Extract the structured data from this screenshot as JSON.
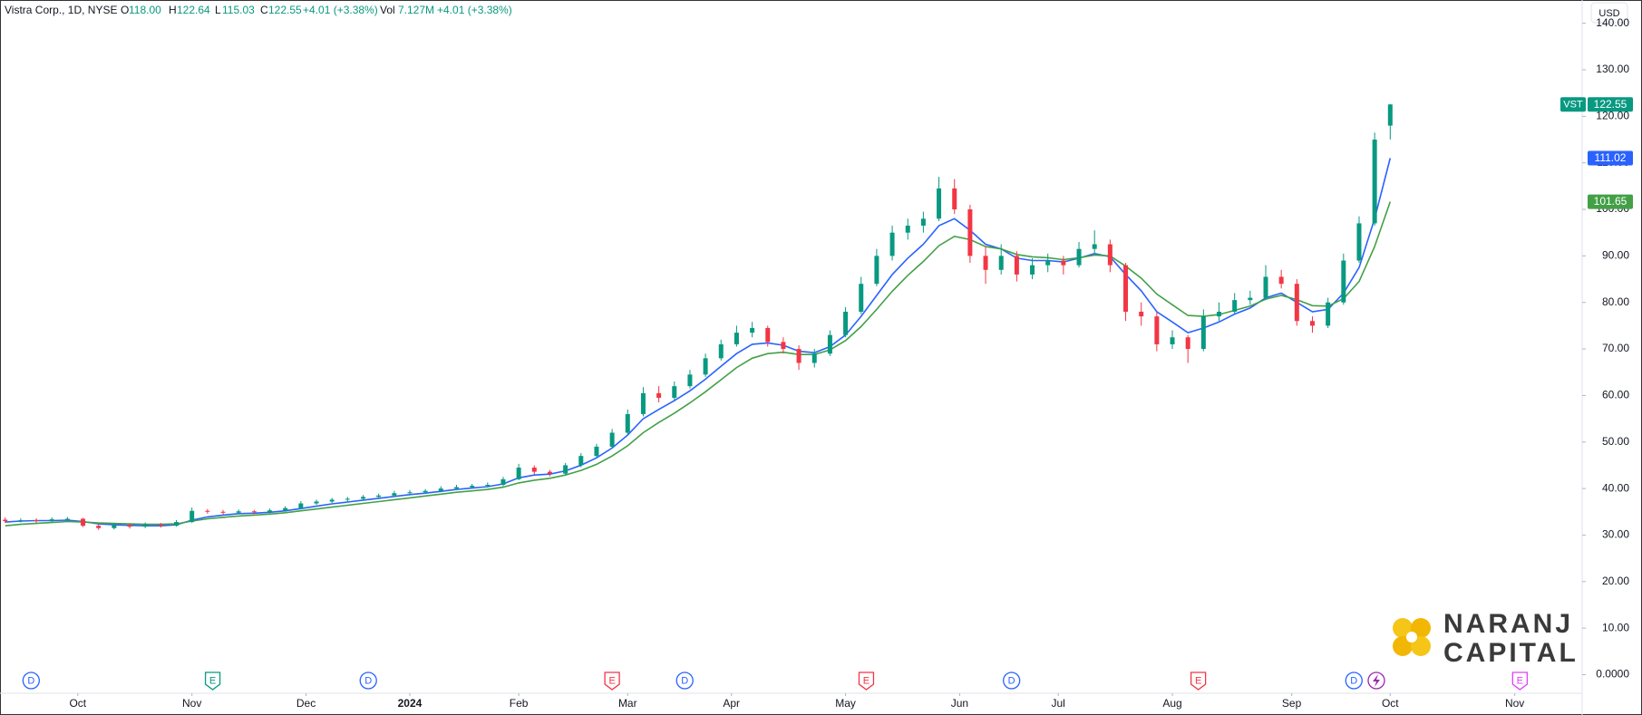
{
  "legend": {
    "symbol": "Vistra Corp., 1D, NYSE",
    "o_label": "O",
    "o": "118.00",
    "h_label": "H",
    "h": "122.64",
    "l_label": "L",
    "l": "115.03",
    "c_label": "C",
    "c": "122.55",
    "change": "+4.01 (+3.38%)",
    "vol_label": "Vol",
    "vol": "7.127M",
    "vol_change": "+4.01 (+3.38%)"
  },
  "currency": "USD",
  "logo": {
    "line1": "NARANJ",
    "line2": "CAPITAL"
  },
  "chart_data": {
    "type": "candlestick",
    "up_color": "#089981",
    "down_color": "#f23645",
    "xlim": [
      -1,
      304
    ],
    "ylim": [
      -4,
      145
    ],
    "yticks": [
      {
        "value": 0,
        "label": "0.0000"
      },
      {
        "value": 10,
        "label": "10.00"
      },
      {
        "value": 20,
        "label": "20.00"
      },
      {
        "value": 30,
        "label": "30.00"
      },
      {
        "value": 40,
        "label": "40.00"
      },
      {
        "value": 50,
        "label": "50.00"
      },
      {
        "value": 60,
        "label": "60.00"
      },
      {
        "value": 70,
        "label": "70.00"
      },
      {
        "value": 80,
        "label": "80.00"
      },
      {
        "value": 90,
        "label": "90.00"
      },
      {
        "value": 100,
        "label": "100.00"
      },
      {
        "value": 110,
        "label": "110.00"
      },
      {
        "value": 120,
        "label": "120.00"
      },
      {
        "value": 130,
        "label": "130.00"
      },
      {
        "value": 140,
        "label": "140.00"
      }
    ],
    "xticks": [
      {
        "value": 14,
        "label": "Oct"
      },
      {
        "value": 36,
        "label": "Nov"
      },
      {
        "value": 58,
        "label": "Dec"
      },
      {
        "value": 78,
        "label": "2024"
      },
      {
        "value": 99,
        "label": "Feb"
      },
      {
        "value": 120,
        "label": "Mar"
      },
      {
        "value": 140,
        "label": "Apr"
      },
      {
        "value": 162,
        "label": "May"
      },
      {
        "value": 184,
        "label": "Jun"
      },
      {
        "value": 203,
        "label": "Jul"
      },
      {
        "value": 225,
        "label": "Aug"
      },
      {
        "value": 248,
        "label": "Sep"
      },
      {
        "value": 267,
        "label": "Oct"
      },
      {
        "value": 291,
        "label": "Nov"
      }
    ],
    "x": [
      0,
      3,
      6,
      9,
      12,
      15,
      18,
      21,
      24,
      27,
      30,
      33,
      36,
      39,
      42,
      45,
      48,
      51,
      54,
      57,
      60,
      63,
      66,
      69,
      72,
      75,
      78,
      81,
      84,
      87,
      90,
      93,
      96,
      99,
      102,
      105,
      108,
      111,
      114,
      117,
      120,
      123,
      126,
      129,
      132,
      135,
      138,
      141,
      144,
      147,
      150,
      153,
      156,
      159,
      162,
      165,
      168,
      171,
      174,
      177,
      180,
      183,
      186,
      189,
      192,
      195,
      198,
      201,
      204,
      207,
      210,
      213,
      216,
      219,
      222,
      225,
      228,
      231,
      234,
      237,
      240,
      243,
      246,
      249,
      252,
      255,
      258,
      261,
      264,
      267
    ],
    "open": [
      33.3,
      33.0,
      33.2,
      33.0,
      33.4,
      33.5,
      32.0,
      31.5,
      32.2,
      31.8,
      32.3,
      32.0,
      32.8,
      35.2,
      35.0,
      34.8,
      35.1,
      34.9,
      35.3,
      35.8,
      36.8,
      37.2,
      37.6,
      37.8,
      38.2,
      38.5,
      39.0,
      39.2,
      39.5,
      40.0,
      40.3,
      40.6,
      40.8,
      42.0,
      44.5,
      43.6,
      43.2,
      45.0,
      47.0,
      49.0,
      52.0,
      56.0,
      60.5,
      59.5,
      62.0,
      64.5,
      68.0,
      71.0,
      73.5,
      74.5,
      71.5,
      70.0,
      67.0,
      69.0,
      73.0,
      78.0,
      84.0,
      90.0,
      95.0,
      96.5,
      98.0,
      104.5,
      100.0,
      90.0,
      87.0,
      90.0,
      86.0,
      88.0,
      89.0,
      88.0,
      91.5,
      92.5,
      88.0,
      78.0,
      77.0,
      71.0,
      72.5,
      70.0,
      77.0,
      78.0,
      80.5,
      81.0,
      85.5,
      84.0,
      76.0,
      75.0,
      80.0,
      89.0,
      97.0,
      118.0
    ],
    "high": [
      33.8,
      33.6,
      33.6,
      33.8,
      33.9,
      33.7,
      32.3,
      32.6,
      32.5,
      32.7,
      32.6,
      33.2,
      35.9,
      35.6,
      35.4,
      35.5,
      35.4,
      35.7,
      36.2,
      37.3,
      37.6,
      38.0,
      38.2,
      38.6,
      38.9,
      39.5,
      39.7,
      39.9,
      40.5,
      40.8,
      41.0,
      41.3,
      42.5,
      45.3,
      45.0,
      44.0,
      45.5,
      47.6,
      49.6,
      52.8,
      57.0,
      61.8,
      62.0,
      63.0,
      65.5,
      69.0,
      72.0,
      75.0,
      75.8,
      75.0,
      72.5,
      70.8,
      70.0,
      74.0,
      79.0,
      85.5,
      91.5,
      96.5,
      98.0,
      99.5,
      107.0,
      106.5,
      101.0,
      92.0,
      92.5,
      91.0,
      89.5,
      90.5,
      90.0,
      93.0,
      95.5,
      93.5,
      88.5,
      80.0,
      78.0,
      74.0,
      73.0,
      78.5,
      80.0,
      82.0,
      82.5,
      88.0,
      87.0,
      85.0,
      77.0,
      81.0,
      90.5,
      98.5,
      116.5,
      122.64
    ],
    "low": [
      32.6,
      32.7,
      32.6,
      32.8,
      33.0,
      31.7,
      31.1,
      31.2,
      31.4,
      31.5,
      31.6,
      31.8,
      32.6,
      34.6,
      34.4,
      34.5,
      34.5,
      34.6,
      35.0,
      35.5,
      36.5,
      36.9,
      37.2,
      37.5,
      37.9,
      38.2,
      38.7,
      38.9,
      39.2,
      39.7,
      40.0,
      40.2,
      40.5,
      41.8,
      43.0,
      42.6,
      43.0,
      44.6,
      46.6,
      48.6,
      51.5,
      55.5,
      58.5,
      59.0,
      61.5,
      64.0,
      67.5,
      70.5,
      72.5,
      70.5,
      69.0,
      65.5,
      66.0,
      68.5,
      72.5,
      77.5,
      83.5,
      89.0,
      93.5,
      95.0,
      97.5,
      99.0,
      88.5,
      84.0,
      86.0,
      84.5,
      85.0,
      86.5,
      86.0,
      87.5,
      90.5,
      86.5,
      76.0,
      75.0,
      69.5,
      70.0,
      67.0,
      69.5,
      76.0,
      77.5,
      79.5,
      80.5,
      83.0,
      75.0,
      73.5,
      74.5,
      79.5,
      88.5,
      96.5,
      115.03
    ],
    "close": [
      33.0,
      33.2,
      33.0,
      33.4,
      33.5,
      32.0,
      31.5,
      32.2,
      31.8,
      32.3,
      32.0,
      32.8,
      35.2,
      35.0,
      34.8,
      35.1,
      34.9,
      35.3,
      35.8,
      36.8,
      37.2,
      37.6,
      37.8,
      38.2,
      38.5,
      39.0,
      39.2,
      39.5,
      40.0,
      40.3,
      40.6,
      40.8,
      42.0,
      44.5,
      43.6,
      43.2,
      45.0,
      47.0,
      49.0,
      52.0,
      56.0,
      60.5,
      59.5,
      62.0,
      64.5,
      68.0,
      71.0,
      73.5,
      74.5,
      71.5,
      70.0,
      67.0,
      69.0,
      73.0,
      78.0,
      84.0,
      90.0,
      95.0,
      96.5,
      98.0,
      104.5,
      100.0,
      90.0,
      87.0,
      90.0,
      86.0,
      88.0,
      89.0,
      88.0,
      91.5,
      92.5,
      88.0,
      78.0,
      77.0,
      71.0,
      72.5,
      70.0,
      77.0,
      78.0,
      80.5,
      81.0,
      85.5,
      84.0,
      76.0,
      75.0,
      80.0,
      89.0,
      97.0,
      115.0,
      122.55
    ],
    "series": [
      {
        "color": "#2962ff",
        "values": [
          32.8,
          33.0,
          33.1,
          33.1,
          33.2,
          32.9,
          32.4,
          32.2,
          32.1,
          32.0,
          32.0,
          32.2,
          33.2,
          33.9,
          34.3,
          34.6,
          34.7,
          34.9,
          35.2,
          35.7,
          36.2,
          36.7,
          37.1,
          37.5,
          37.9,
          38.3,
          38.7,
          39.0,
          39.4,
          39.8,
          40.1,
          40.4,
          41.0,
          42.3,
          42.9,
          43.1,
          43.8,
          45.0,
          46.6,
          48.7,
          51.5,
          55.0,
          57.0,
          58.9,
          61.0,
          63.5,
          66.3,
          69.0,
          71.0,
          71.3,
          70.8,
          69.5,
          69.2,
          70.5,
          73.0,
          77.0,
          81.5,
          86.0,
          89.5,
          92.5,
          96.5,
          98.0,
          95.5,
          92.5,
          91.5,
          89.5,
          89.0,
          89.0,
          88.7,
          89.5,
          90.5,
          89.8,
          86.0,
          82.5,
          78.0,
          75.8,
          73.5,
          74.5,
          75.8,
          77.5,
          78.8,
          81.0,
          82.0,
          80.0,
          78.0,
          78.5,
          82.0,
          87.5,
          98.0,
          111.02
        ]
      },
      {
        "color": "#43a047",
        "values": [
          32.0,
          32.3,
          32.5,
          32.7,
          32.9,
          32.8,
          32.6,
          32.5,
          32.4,
          32.3,
          32.3,
          32.4,
          33.0,
          33.5,
          33.8,
          34.1,
          34.3,
          34.5,
          34.8,
          35.2,
          35.6,
          36.0,
          36.4,
          36.8,
          37.2,
          37.6,
          38.0,
          38.4,
          38.8,
          39.2,
          39.5,
          39.8,
          40.3,
          41.2,
          41.8,
          42.2,
          42.9,
          43.9,
          45.2,
          47.0,
          49.2,
          52.0,
          54.2,
          56.2,
          58.4,
          60.8,
          63.4,
          66.0,
          68.0,
          69.0,
          69.3,
          68.8,
          68.8,
          69.8,
          71.8,
          74.8,
          78.5,
          82.4,
          85.8,
          88.8,
          92.2,
          94.2,
          93.5,
          92.0,
          91.5,
          90.3,
          89.8,
          89.6,
          89.2,
          89.6,
          90.2,
          90.0,
          87.8,
          85.2,
          81.8,
          79.5,
          77.2,
          77.0,
          77.4,
          78.3,
          79.2,
          80.7,
          81.5,
          80.6,
          79.3,
          79.2,
          80.8,
          84.5,
          92.0,
          101.65
        ]
      }
    ],
    "price_tags": [
      {
        "symbol": "VST",
        "value": 122.55,
        "color": "#089981"
      },
      {
        "value": 111.02,
        "color": "#2962ff"
      },
      {
        "value": 101.65,
        "color": "#43a047"
      }
    ],
    "events": [
      {
        "x": 5,
        "label": "D",
        "color": "#2962ff"
      },
      {
        "x": 40,
        "label": "E",
        "color": "#089981"
      },
      {
        "x": 70,
        "label": "D",
        "color": "#2962ff"
      },
      {
        "x": 117,
        "label": "E",
        "color": "#f23645"
      },
      {
        "x": 131,
        "label": "D",
        "color": "#2962ff"
      },
      {
        "x": 166,
        "label": "E",
        "color": "#f23645"
      },
      {
        "x": 194,
        "label": "D",
        "color": "#2962ff"
      },
      {
        "x": 230,
        "label": "E",
        "color": "#f23645"
      },
      {
        "x": 260,
        "label": "D",
        "color": "#2962ff"
      },
      {
        "x": 292,
        "label": "E",
        "color": "#e040fb"
      }
    ]
  }
}
